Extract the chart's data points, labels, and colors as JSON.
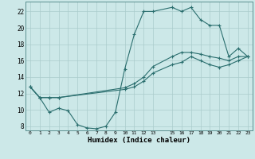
{
  "title": "",
  "xlabel": "Humidex (Indice chaleur)",
  "bg_color": "#cce8e8",
  "line_color": "#2a6e6e",
  "grid_color": "#aacccc",
  "xlim": [
    -0.5,
    23.5
  ],
  "ylim": [
    7.5,
    23.2
  ],
  "xticks": [
    0,
    1,
    2,
    3,
    4,
    5,
    6,
    7,
    8,
    9,
    10,
    11,
    12,
    13,
    15,
    16,
    17,
    18,
    19,
    20,
    21,
    22,
    23
  ],
  "yticks": [
    8,
    10,
    12,
    14,
    16,
    18,
    20,
    22
  ],
  "line1_x": [
    0,
    1,
    2,
    3,
    4,
    5,
    6,
    7,
    8,
    9,
    10,
    11,
    12,
    13,
    15,
    16,
    17,
    18,
    19,
    20,
    21,
    22,
    23
  ],
  "line1_y": [
    12.8,
    11.5,
    9.7,
    10.2,
    9.9,
    8.2,
    7.8,
    7.7,
    8.0,
    9.7,
    15.0,
    19.2,
    22.0,
    22.0,
    22.5,
    22.0,
    22.5,
    21.0,
    20.3,
    20.3,
    16.5,
    17.5,
    16.5
  ],
  "line2_x": [
    0,
    1,
    2,
    3,
    10,
    11,
    12,
    13,
    15,
    16,
    17,
    18,
    19,
    20,
    21,
    22,
    23
  ],
  "line2_y": [
    12.8,
    11.5,
    11.5,
    11.5,
    12.7,
    13.2,
    14.0,
    15.3,
    16.5,
    17.0,
    17.0,
    16.8,
    16.5,
    16.3,
    16.0,
    16.5,
    16.5
  ],
  "line3_x": [
    0,
    1,
    2,
    3,
    10,
    11,
    12,
    13,
    15,
    16,
    17,
    18,
    19,
    20,
    21,
    22,
    23
  ],
  "line3_y": [
    12.8,
    11.5,
    11.5,
    11.5,
    12.5,
    12.8,
    13.5,
    14.5,
    15.5,
    15.8,
    16.5,
    16.0,
    15.5,
    15.2,
    15.5,
    16.0,
    16.5
  ]
}
